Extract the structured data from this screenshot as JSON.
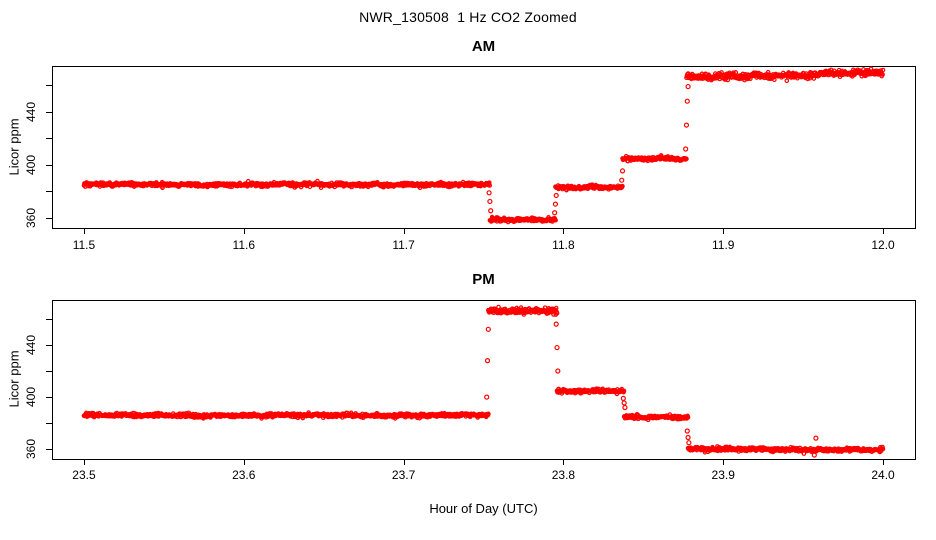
{
  "figure": {
    "title": "NWR_130508  1 Hz CO2 Zoomed",
    "xlabel": "Hour of Day (UTC)",
    "point_color": "#ff0000",
    "axis_color": "#000000",
    "background": "#ffffff"
  },
  "chart_data": [
    {
      "type": "scatter",
      "title": "AM",
      "ylabel": "Licor ppm",
      "marker": "open-circle",
      "sample_rate_hz": 1,
      "xlim": [
        11.48,
        12.02
      ],
      "ylim": [
        352.5,
        474.5
      ],
      "xticks": [
        11.5,
        11.6,
        11.7,
        11.8,
        11.9,
        12.0
      ],
      "xtick_labels": [
        "11.5",
        "11.6",
        "11.7",
        "11.8",
        "11.9",
        "12.0"
      ],
      "yticks": [
        360,
        380,
        400,
        420,
        440,
        460
      ],
      "ytick_label_values": [
        360,
        400,
        440
      ],
      "ytick_label_texts": [
        "360",
        "400",
        "440"
      ],
      "segments": [
        {
          "t0": 11.5,
          "t1": 11.754,
          "level": 385.2,
          "drift": 0.0,
          "sigma": 0.7
        },
        {
          "t0": 11.754,
          "t1": 11.795,
          "level": 358.6,
          "drift": 0.0,
          "sigma": 0.7
        },
        {
          "t0": 11.795,
          "t1": 11.837,
          "level": 383.0,
          "drift": 0.0,
          "sigma": 0.7
        },
        {
          "t0": 11.837,
          "t1": 11.877,
          "level": 404.5,
          "drift": 0.0,
          "sigma": 0.7
        },
        {
          "t0": 11.877,
          "t1": 11.96,
          "level": 466.3,
          "drift": 1.2,
          "sigma": 1.1
        },
        {
          "t0": 11.96,
          "t1": 12.0,
          "level": 469.0,
          "drift": 0.0,
          "sigma": 1.1
        }
      ],
      "sparse_points": [
        [
          11.7535,
          379.0
        ],
        [
          11.754,
          372.5
        ],
        [
          11.7545,
          365.5
        ],
        [
          11.7945,
          364.0
        ],
        [
          11.795,
          370.5
        ],
        [
          11.7955,
          377.0
        ],
        [
          11.8365,
          388.5
        ],
        [
          11.837,
          395.5
        ],
        [
          11.8765,
          412.0
        ],
        [
          11.877,
          430.0
        ],
        [
          11.8775,
          448.0
        ],
        [
          11.878,
          459.0
        ]
      ]
    },
    {
      "type": "scatter",
      "title": "PM",
      "ylabel": "Licor ppm",
      "marker": "open-circle",
      "sample_rate_hz": 1,
      "xlim": [
        23.48,
        24.02
      ],
      "ylim": [
        352.5,
        474.5
      ],
      "xticks": [
        23.5,
        23.6,
        23.7,
        23.8,
        23.9,
        24.0
      ],
      "xtick_labels": [
        "23.5",
        "23.6",
        "23.7",
        "23.8",
        "23.9",
        "24.0"
      ],
      "yticks": [
        360,
        380,
        400,
        420,
        440,
        460
      ],
      "ytick_label_values": [
        360,
        400,
        440
      ],
      "ytick_label_texts": [
        "360",
        "400",
        "440"
      ],
      "segments": [
        {
          "t0": 23.5,
          "t1": 23.753,
          "level": 386.0,
          "drift": 0.0,
          "sigma": 0.7
        },
        {
          "t0": 23.753,
          "t1": 23.796,
          "level": 466.0,
          "drift": 0.0,
          "sigma": 1.1
        },
        {
          "t0": 23.796,
          "t1": 23.838,
          "level": 404.5,
          "drift": 0.0,
          "sigma": 0.7
        },
        {
          "t0": 23.838,
          "t1": 23.878,
          "level": 384.5,
          "drift": 0.0,
          "sigma": 0.7
        },
        {
          "t0": 23.878,
          "t1": 24.0,
          "level": 360.0,
          "drift": -0.5,
          "sigma": 0.7
        }
      ],
      "sparse_points": [
        [
          23.752,
          400.0
        ],
        [
          23.7525,
          428.0
        ],
        [
          23.753,
          452.0
        ],
        [
          23.7955,
          456.0
        ],
        [
          23.796,
          438.0
        ],
        [
          23.7965,
          420.0
        ],
        [
          23.797,
          406.0
        ],
        [
          23.8375,
          399.0
        ],
        [
          23.838,
          395.5
        ],
        [
          23.8385,
          392.0
        ],
        [
          23.8775,
          374.0
        ],
        [
          23.878,
          369.0
        ],
        [
          23.8785,
          365.0
        ],
        [
          23.958,
          368.5
        ],
        [
          23.957,
          355.5
        ]
      ]
    }
  ]
}
